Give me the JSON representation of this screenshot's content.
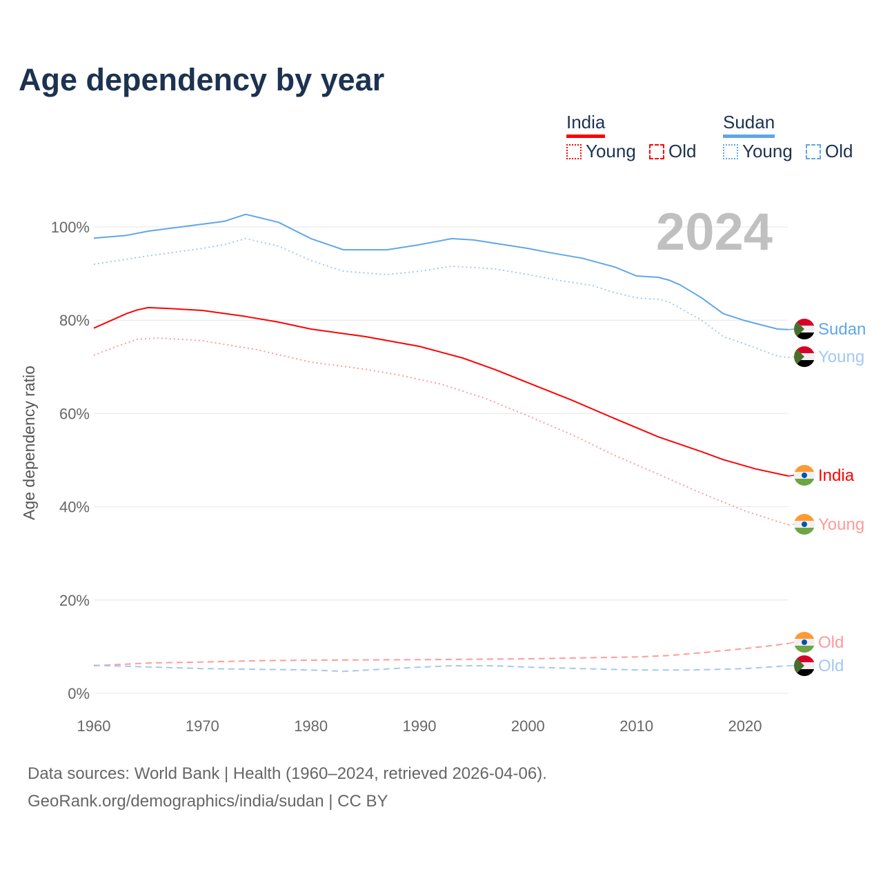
{
  "chart_data": {
    "type": "line",
    "title": "Age dependency by year",
    "ylabel": "Age dependency ratio",
    "xlabel": "",
    "xlim": [
      1960,
      2024
    ],
    "ylim": [
      0,
      110
    ],
    "x_ticks": [
      "1960",
      "1970",
      "1980",
      "1990",
      "2000",
      "2010",
      "2020"
    ],
    "y_ticks": [
      "0%",
      "20%",
      "40%",
      "60%",
      "80%",
      "100%"
    ],
    "y_tick_values": [
      0,
      20,
      40,
      60,
      80,
      100
    ],
    "grid": true,
    "year_watermark": "2024",
    "legend": {
      "position": "top-right",
      "groups": [
        {
          "country": "India",
          "color": "#ff0000",
          "young": "Young",
          "old": "Old"
        },
        {
          "country": "Sudan",
          "color": "#5ea6e9",
          "young": "Young",
          "old": "Old"
        }
      ]
    },
    "series": [
      {
        "name": "Sudan",
        "label": "Sudan",
        "style": "solid",
        "color": "#5ea6e9",
        "flag": "sudan",
        "x": [
          1960,
          1963,
          1965,
          1968,
          1972,
          1974,
          1977,
          1980,
          1982,
          1983,
          1987,
          1990,
          1993,
          1995,
          2000,
          2002,
          2005,
          2008,
          2010,
          2012,
          2013,
          2014,
          2016,
          2018,
          2020,
          2023,
          2024
        ],
        "values": [
          97.6,
          98.2,
          99.1,
          100,
          101.2,
          102.7,
          101,
          97.5,
          95.9,
          95.1,
          95.1,
          96.2,
          97.5,
          97.2,
          95.4,
          94.5,
          93.3,
          91.4,
          89.5,
          89.2,
          88.6,
          87.6,
          84.8,
          81.4,
          79.9,
          78.1,
          78.0
        ]
      },
      {
        "name": "Sudan Young",
        "label": "Young",
        "style": "dotted",
        "color": "#a3c8f0",
        "flag": "sudan",
        "x": [
          1960,
          1965,
          1970,
          1972,
          1974,
          1977,
          1980,
          1983,
          1987,
          1990,
          1993,
          1997,
          2000,
          2003,
          2006,
          2008,
          2010,
          2012,
          2013,
          2016,
          2018,
          2020,
          2023,
          2024
        ],
        "values": [
          92.0,
          93.8,
          95.4,
          96.2,
          97.5,
          95.9,
          92.8,
          90.5,
          89.8,
          90.5,
          91.6,
          91.0,
          89.8,
          88.5,
          87.4,
          85.9,
          84.8,
          84.5,
          83.9,
          80.0,
          76.5,
          74.9,
          72.3,
          72.0
        ]
      },
      {
        "name": "India",
        "label": "India",
        "style": "solid",
        "color": "#ff0000",
        "flag": "india",
        "x": [
          1960,
          1963,
          1964,
          1965,
          1967,
          1970,
          1974,
          1977,
          1980,
          1985,
          1990,
          1994,
          1997,
          2000,
          2004,
          2008,
          2012,
          2016,
          2018,
          2021,
          2024
        ],
        "values": [
          78.3,
          81.4,
          82.2,
          82.7,
          82.5,
          82.1,
          80.8,
          79.6,
          78.1,
          76.5,
          74.4,
          71.9,
          69.4,
          66.6,
          62.9,
          58.9,
          55.0,
          51.8,
          50.1,
          48.1,
          46.6
        ]
      },
      {
        "name": "India Young",
        "label": "Young",
        "style": "dotted",
        "color": "#ff9a9a",
        "flag": "india",
        "x": [
          1960,
          1962,
          1964,
          1966,
          1970,
          1975,
          1980,
          1985,
          1988,
          1992,
          1996,
          2000,
          2004,
          2008,
          2012,
          2016,
          2020,
          2024
        ],
        "values": [
          72.5,
          74.3,
          75.9,
          76.2,
          75.6,
          73.7,
          71.0,
          69.5,
          68.3,
          66.3,
          63.3,
          59.5,
          55.5,
          51.0,
          47.0,
          42.9,
          39.1,
          36.1
        ]
      },
      {
        "name": "India Old",
        "label": "Old",
        "style": "dashed",
        "color": "#ff9a9a",
        "flag": "india",
        "x": [
          1960,
          1965,
          1970,
          1975,
          1980,
          1990,
          2000,
          2010,
          2013,
          2016,
          2020,
          2022,
          2024
        ],
        "values": [
          5.9,
          6.5,
          6.7,
          7.0,
          7.1,
          7.2,
          7.4,
          7.8,
          8.1,
          8.7,
          9.6,
          10.1,
          10.7
        ]
      },
      {
        "name": "Sudan Old",
        "label": "Old",
        "style": "dashed",
        "color": "#a3c8f0",
        "flag": "sudan",
        "x": [
          1960,
          1970,
          1980,
          1983,
          1990,
          1993,
          1997,
          2000,
          2005,
          2010,
          2015,
          2020,
          2024
        ],
        "values": [
          6.0,
          5.3,
          5.0,
          4.7,
          5.6,
          5.9,
          5.9,
          5.6,
          5.3,
          5.0,
          5.0,
          5.3,
          5.9
        ]
      }
    ]
  },
  "footer": {
    "line1": "Data sources: World Bank | Health (1960–2024, retrieved 2026-04-06).",
    "line2": "GeoRank.org/demographics/india/sudan | CC BY"
  }
}
